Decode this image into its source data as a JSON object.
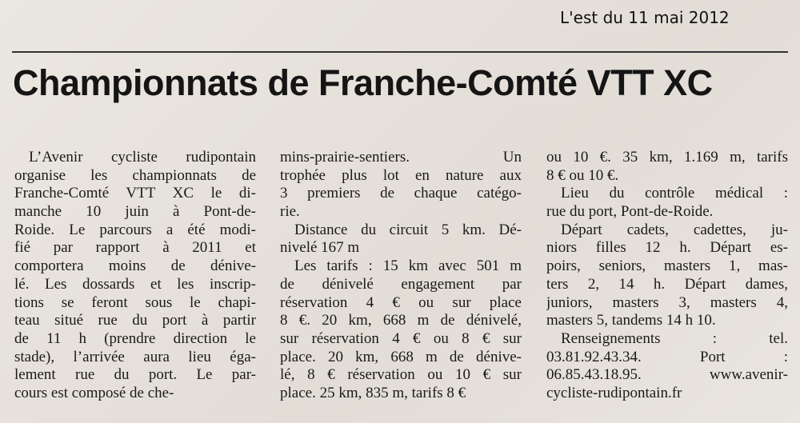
{
  "source": "L'est du 11 mai 2012",
  "title": "Championnats de Franche-Comté VTT XC",
  "columns": [
    {
      "paragraphs": [
        {
          "lines": [
            "L’Avenir cycliste rudipontain",
            "organise les championnats de",
            "Franche-Comté VTT XC le di-",
            "manche 10 juin à Pont-de-",
            "Roide. Le parcours a été modi-",
            "fié par rapport à 2011 et",
            "comportera moins de dénive-",
            "lé. Les dossards et les inscrip-",
            "tions se feront sous le chapi-",
            "teau situé rue du port à partir",
            "de 11 h (prendre direction le",
            "stade), l’arrivée aura lieu éga-",
            "lement rue du port. Le par-",
            "cours est composé de che-"
          ]
        }
      ]
    },
    {
      "paragraphs": [
        {
          "lines": [
            "mins-prairie-sentiers. Un",
            "trophée plus lot en nature aux",
            "3 premiers de chaque catégo-",
            "rie."
          ]
        },
        {
          "lines": [
            "Distance du circuit 5 km. Dé-",
            "nivelé 167 m"
          ]
        },
        {
          "lines": [
            "Les tarifs : 15 km avec 501 m",
            "de dénivelé engagement par",
            "réservation 4 € ou sur place",
            "8 €. 20 km, 668 m de dénivelé,",
            "sur réservation 4 € ou 8 € sur",
            "place. 20 km, 668 m de dénive-",
            "lé, 8 € réservation ou 10 € sur",
            "place. 25 km, 835 m, tarifs 8 €"
          ]
        }
      ]
    },
    {
      "paragraphs": [
        {
          "lines": [
            "ou 10 €. 35 km, 1.169 m, tarifs",
            "8 € ou 10 €."
          ]
        },
        {
          "lines": [
            "Lieu du contrôle médical :",
            "rue du port, Pont-de-Roide."
          ]
        },
        {
          "lines": [
            "Départ cadets, cadettes, ju-",
            "niors filles 12 h. Départ es-",
            "poirs, seniors, masters 1, mas-",
            "ters 2, 14 h. Départ dames,",
            "juniors, masters 3, masters 4,",
            "masters 5, tandems 14 h 10."
          ]
        },
        {
          "lines": [
            "Renseignements : tel.",
            "03.81.92.43.34. Port :",
            "06.85.43.18.95. www.avenir-",
            "cycliste-rudipontain.fr"
          ]
        }
      ]
    }
  ]
}
